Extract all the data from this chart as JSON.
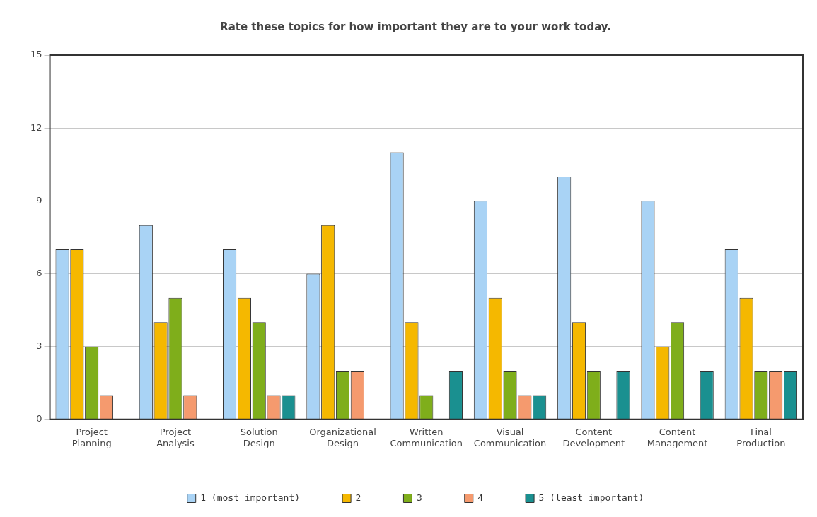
{
  "chart_data": {
    "type": "bar",
    "title": "Rate these topics for how important they are to your work today.",
    "categories": [
      "Project Planning",
      "Project Analysis",
      "Solution Design",
      "Organizational Design",
      "Written Communication",
      "Visual Communication",
      "Content Development",
      "Content Management",
      "Final Production"
    ],
    "series": [
      {
        "name": "1 (most important)",
        "color": "#a9d3f5",
        "values": [
          7,
          8,
          7,
          6,
          11,
          9,
          10,
          9,
          7
        ]
      },
      {
        "name": "2",
        "color": "#f5b800",
        "values": [
          7,
          4,
          5,
          8,
          4,
          5,
          4,
          3,
          5
        ]
      },
      {
        "name": "3",
        "color": "#7fae1b",
        "values": [
          3,
          5,
          4,
          2,
          1,
          2,
          2,
          4,
          2
        ]
      },
      {
        "name": "4",
        "color": "#f59a6e",
        "values": [
          1,
          1,
          1,
          2,
          0,
          1,
          0,
          0,
          2
        ]
      },
      {
        "name": "5 (least important)",
        "color": "#1a9090",
        "values": [
          0,
          0,
          1,
          0,
          2,
          1,
          2,
          2,
          2
        ]
      }
    ],
    "ylim": [
      0,
      15
    ],
    "yticks": [
      0,
      3,
      6,
      9,
      12,
      15
    ],
    "grid": "y",
    "legend": "bottom"
  }
}
